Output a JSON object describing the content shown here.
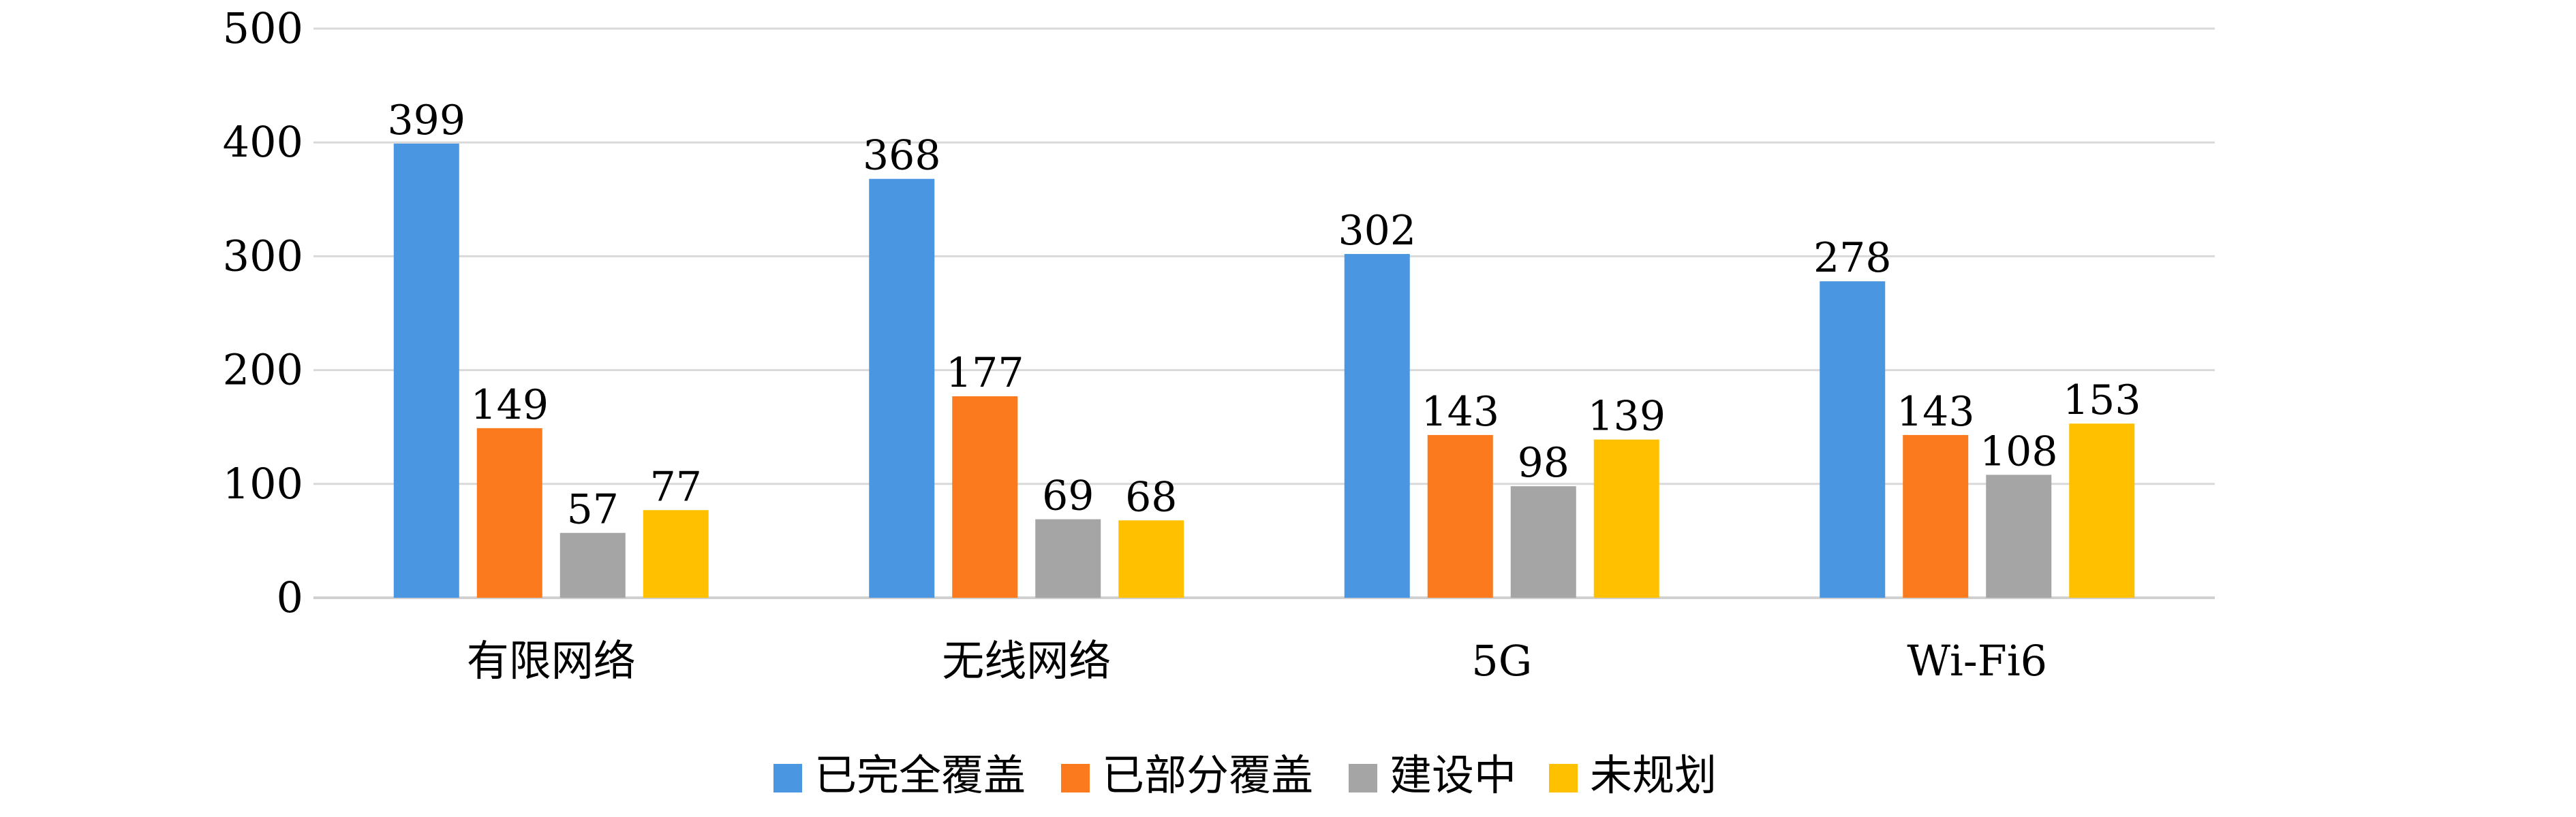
{
  "chart_data": {
    "type": "bar",
    "categories": [
      "有限网络",
      "无线网络",
      "5G",
      "Wi-Fi6"
    ],
    "series": [
      {
        "name": "已完全覆盖",
        "color": "#4a96e0",
        "values": [
          399,
          368,
          302,
          278
        ]
      },
      {
        "name": "已部分覆盖",
        "color": "#fb7a1e",
        "values": [
          149,
          177,
          143,
          143
        ]
      },
      {
        "name": "建设中",
        "color": "#a5a5a5",
        "values": [
          57,
          69,
          98,
          108
        ]
      },
      {
        "name": "未规划",
        "color": "#ffc000",
        "values": [
          77,
          68,
          139,
          153
        ]
      }
    ],
    "ylim": [
      0,
      500
    ],
    "yticks": [
      0,
      100,
      200,
      300,
      400,
      500
    ],
    "grid": true,
    "legend_position": "bottom"
  }
}
